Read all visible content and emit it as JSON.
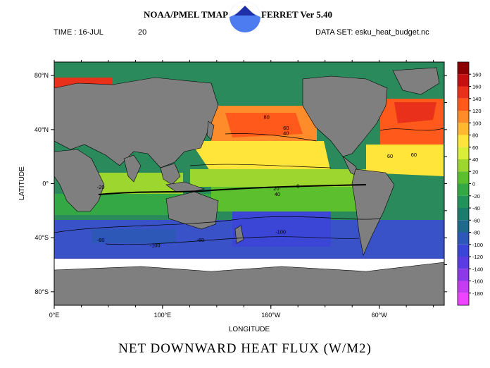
{
  "header": {
    "left": "NOAA/PMEL TMAP",
    "right": "FERRET Ver 5.40",
    "time": "TIME : 16-JUL",
    "time_extra": "20",
    "dataset": "DATA SET: esku_heat_budget.nc"
  },
  "chart_data": {
    "type": "heatmap",
    "title": "NET DOWNWARD HEAT FLUX (W/M2)",
    "xlabel": "LONGITUDE",
    "ylabel": "LATITUDE",
    "x_ticks": [
      "0°E",
      "100°E",
      "160°W",
      "60°W"
    ],
    "x_tick_lon": [
      0,
      100,
      200,
      300
    ],
    "y_ticks": [
      "80°N",
      "40°N",
      "0°",
      "40°S",
      "80°S"
    ],
    "y_tick_lat": [
      80,
      40,
      0,
      -40,
      -80
    ],
    "xlim": [
      0,
      360
    ],
    "ylim": [
      -90,
      90
    ],
    "colorbar": {
      "labels": [
        "160",
        "160",
        "140",
        "120",
        "100",
        "80",
        "60",
        "40",
        "20",
        "0",
        "-20",
        "-40",
        "-60",
        "-80",
        "-100",
        "-120",
        "-140",
        "-160",
        "-180"
      ],
      "colors": [
        "#8b0000",
        "#c41010",
        "#e8301b",
        "#ff5a1c",
        "#ff8c2a",
        "#ffb830",
        "#ffe53a",
        "#d8ee3a",
        "#9dd62e",
        "#5bbf2e",
        "#33a844",
        "#22915a",
        "#1b7c6e",
        "#1f6a8c",
        "#2e58b8",
        "#3b45d6",
        "#5a3ce2",
        "#8c3ae8",
        "#c43df0",
        "#ee44ff"
      ]
    },
    "contour_labels": [
      {
        "text": "80",
        "lon": 196,
        "lat": 48
      },
      {
        "text": "60",
        "lon": 214,
        "lat": 40
      },
      {
        "text": "40",
        "lon": 214,
        "lat": 36
      },
      {
        "text": "20",
        "lon": 205,
        "lat": -5
      },
      {
        "text": "40",
        "lon": 206,
        "lat": -9
      },
      {
        "text": "0",
        "lon": 225,
        "lat": -3
      },
      {
        "text": "-100",
        "lon": 209,
        "lat": -37
      },
      {
        "text": "-80",
        "lon": 43,
        "lat": -43
      },
      {
        "text": "-100",
        "lon": 93,
        "lat": -47
      },
      {
        "text": "-60",
        "lon": 135,
        "lat": -43
      },
      {
        "text": "-20",
        "lon": 43,
        "lat": -4
      },
      {
        "text": "60",
        "lon": 310,
        "lat": 19
      },
      {
        "text": "60",
        "lon": 332,
        "lat": 20
      }
    ]
  }
}
